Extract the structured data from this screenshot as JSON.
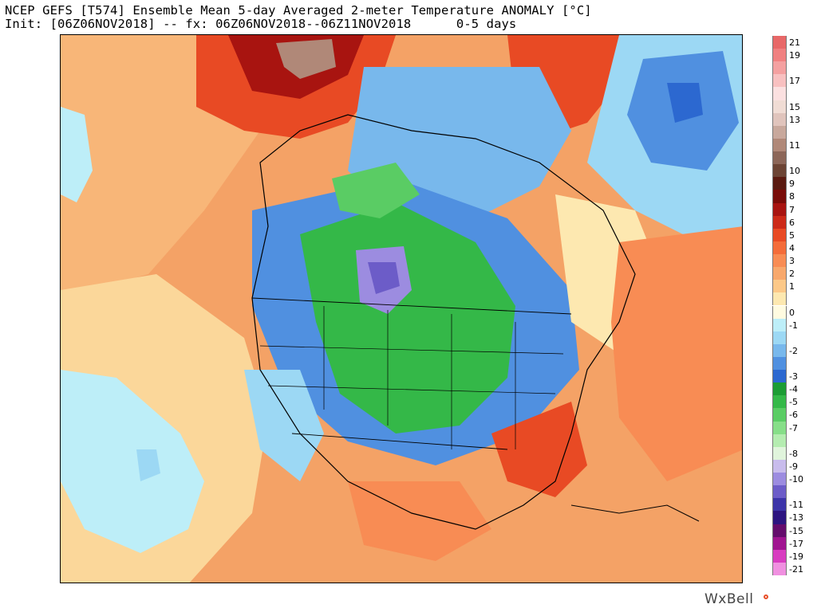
{
  "header": {
    "title_line1": "NCEP GEFS [T574] Ensemble Mean 5-day Averaged 2-meter Temperature ANOMALY [°C]",
    "title_line2": "Init: [06Z06NOV2018] -- fx: 06Z06NOV2018--06Z11NOV2018      0-5 days"
  },
  "colorbar": {
    "entries": [
      {
        "label": "21",
        "color": "#e86868"
      },
      {
        "label": "19",
        "color": "#f08080"
      },
      {
        "label": "",
        "color": "#f4a0a0"
      },
      {
        "label": "17",
        "color": "#f8c0c0"
      },
      {
        "label": "",
        "color": "#fbe0e0"
      },
      {
        "label": "15",
        "color": "#f0dcd4"
      },
      {
        "label": "13",
        "color": "#e0c4bc"
      },
      {
        "label": "",
        "color": "#c8a89c"
      },
      {
        "label": "11",
        "color": "#b08878"
      },
      {
        "label": "",
        "color": "#8c6658"
      },
      {
        "label": "10",
        "color": "#6c4434"
      },
      {
        "label": "9",
        "color": "#5a1a10"
      },
      {
        "label": "8",
        "color": "#7a0c08"
      },
      {
        "label": "7",
        "color": "#a81410"
      },
      {
        "label": "6",
        "color": "#cc2a18"
      },
      {
        "label": "5",
        "color": "#e84a24"
      },
      {
        "label": "4",
        "color": "#f46c3a"
      },
      {
        "label": "3",
        "color": "#f88c54"
      },
      {
        "label": "2",
        "color": "#f8a86c"
      },
      {
        "label": "1",
        "color": "#fcc888"
      },
      {
        "label": "",
        "color": "#fde8b0"
      },
      {
        "label": "0",
        "color": "#fffbe0"
      },
      {
        "label": "-1",
        "color": "#bdeef8"
      },
      {
        "label": "",
        "color": "#9cd8f4"
      },
      {
        "label": "-2",
        "color": "#78b8ec"
      },
      {
        "label": "",
        "color": "#5090e0"
      },
      {
        "label": "-3",
        "color": "#2c68d0"
      },
      {
        "label": "-4",
        "color": "#1c9c34"
      },
      {
        "label": "-5",
        "color": "#34b848"
      },
      {
        "label": "-6",
        "color": "#5acc64"
      },
      {
        "label": "-7",
        "color": "#86de88"
      },
      {
        "label": "",
        "color": "#b4ecb0"
      },
      {
        "label": "-8",
        "color": "#e0f4dc"
      },
      {
        "label": "-9",
        "color": "#c8bcec"
      },
      {
        "label": "-10",
        "color": "#9c8ce0"
      },
      {
        "label": "",
        "color": "#6c5cc8"
      },
      {
        "label": "-11",
        "color": "#3c34a8"
      },
      {
        "label": "-13",
        "color": "#2c1480"
      },
      {
        "label": "-15",
        "color": "#640c6c"
      },
      {
        "label": "-17",
        "color": "#a01490"
      },
      {
        "label": "-19",
        "color": "#d83cc0"
      },
      {
        "label": "-21",
        "color": "#f090e0"
      }
    ]
  },
  "map": {
    "region": "North America",
    "legend_icon": "thermometer-anomaly"
  },
  "branding": {
    "logo": "WxBell"
  }
}
